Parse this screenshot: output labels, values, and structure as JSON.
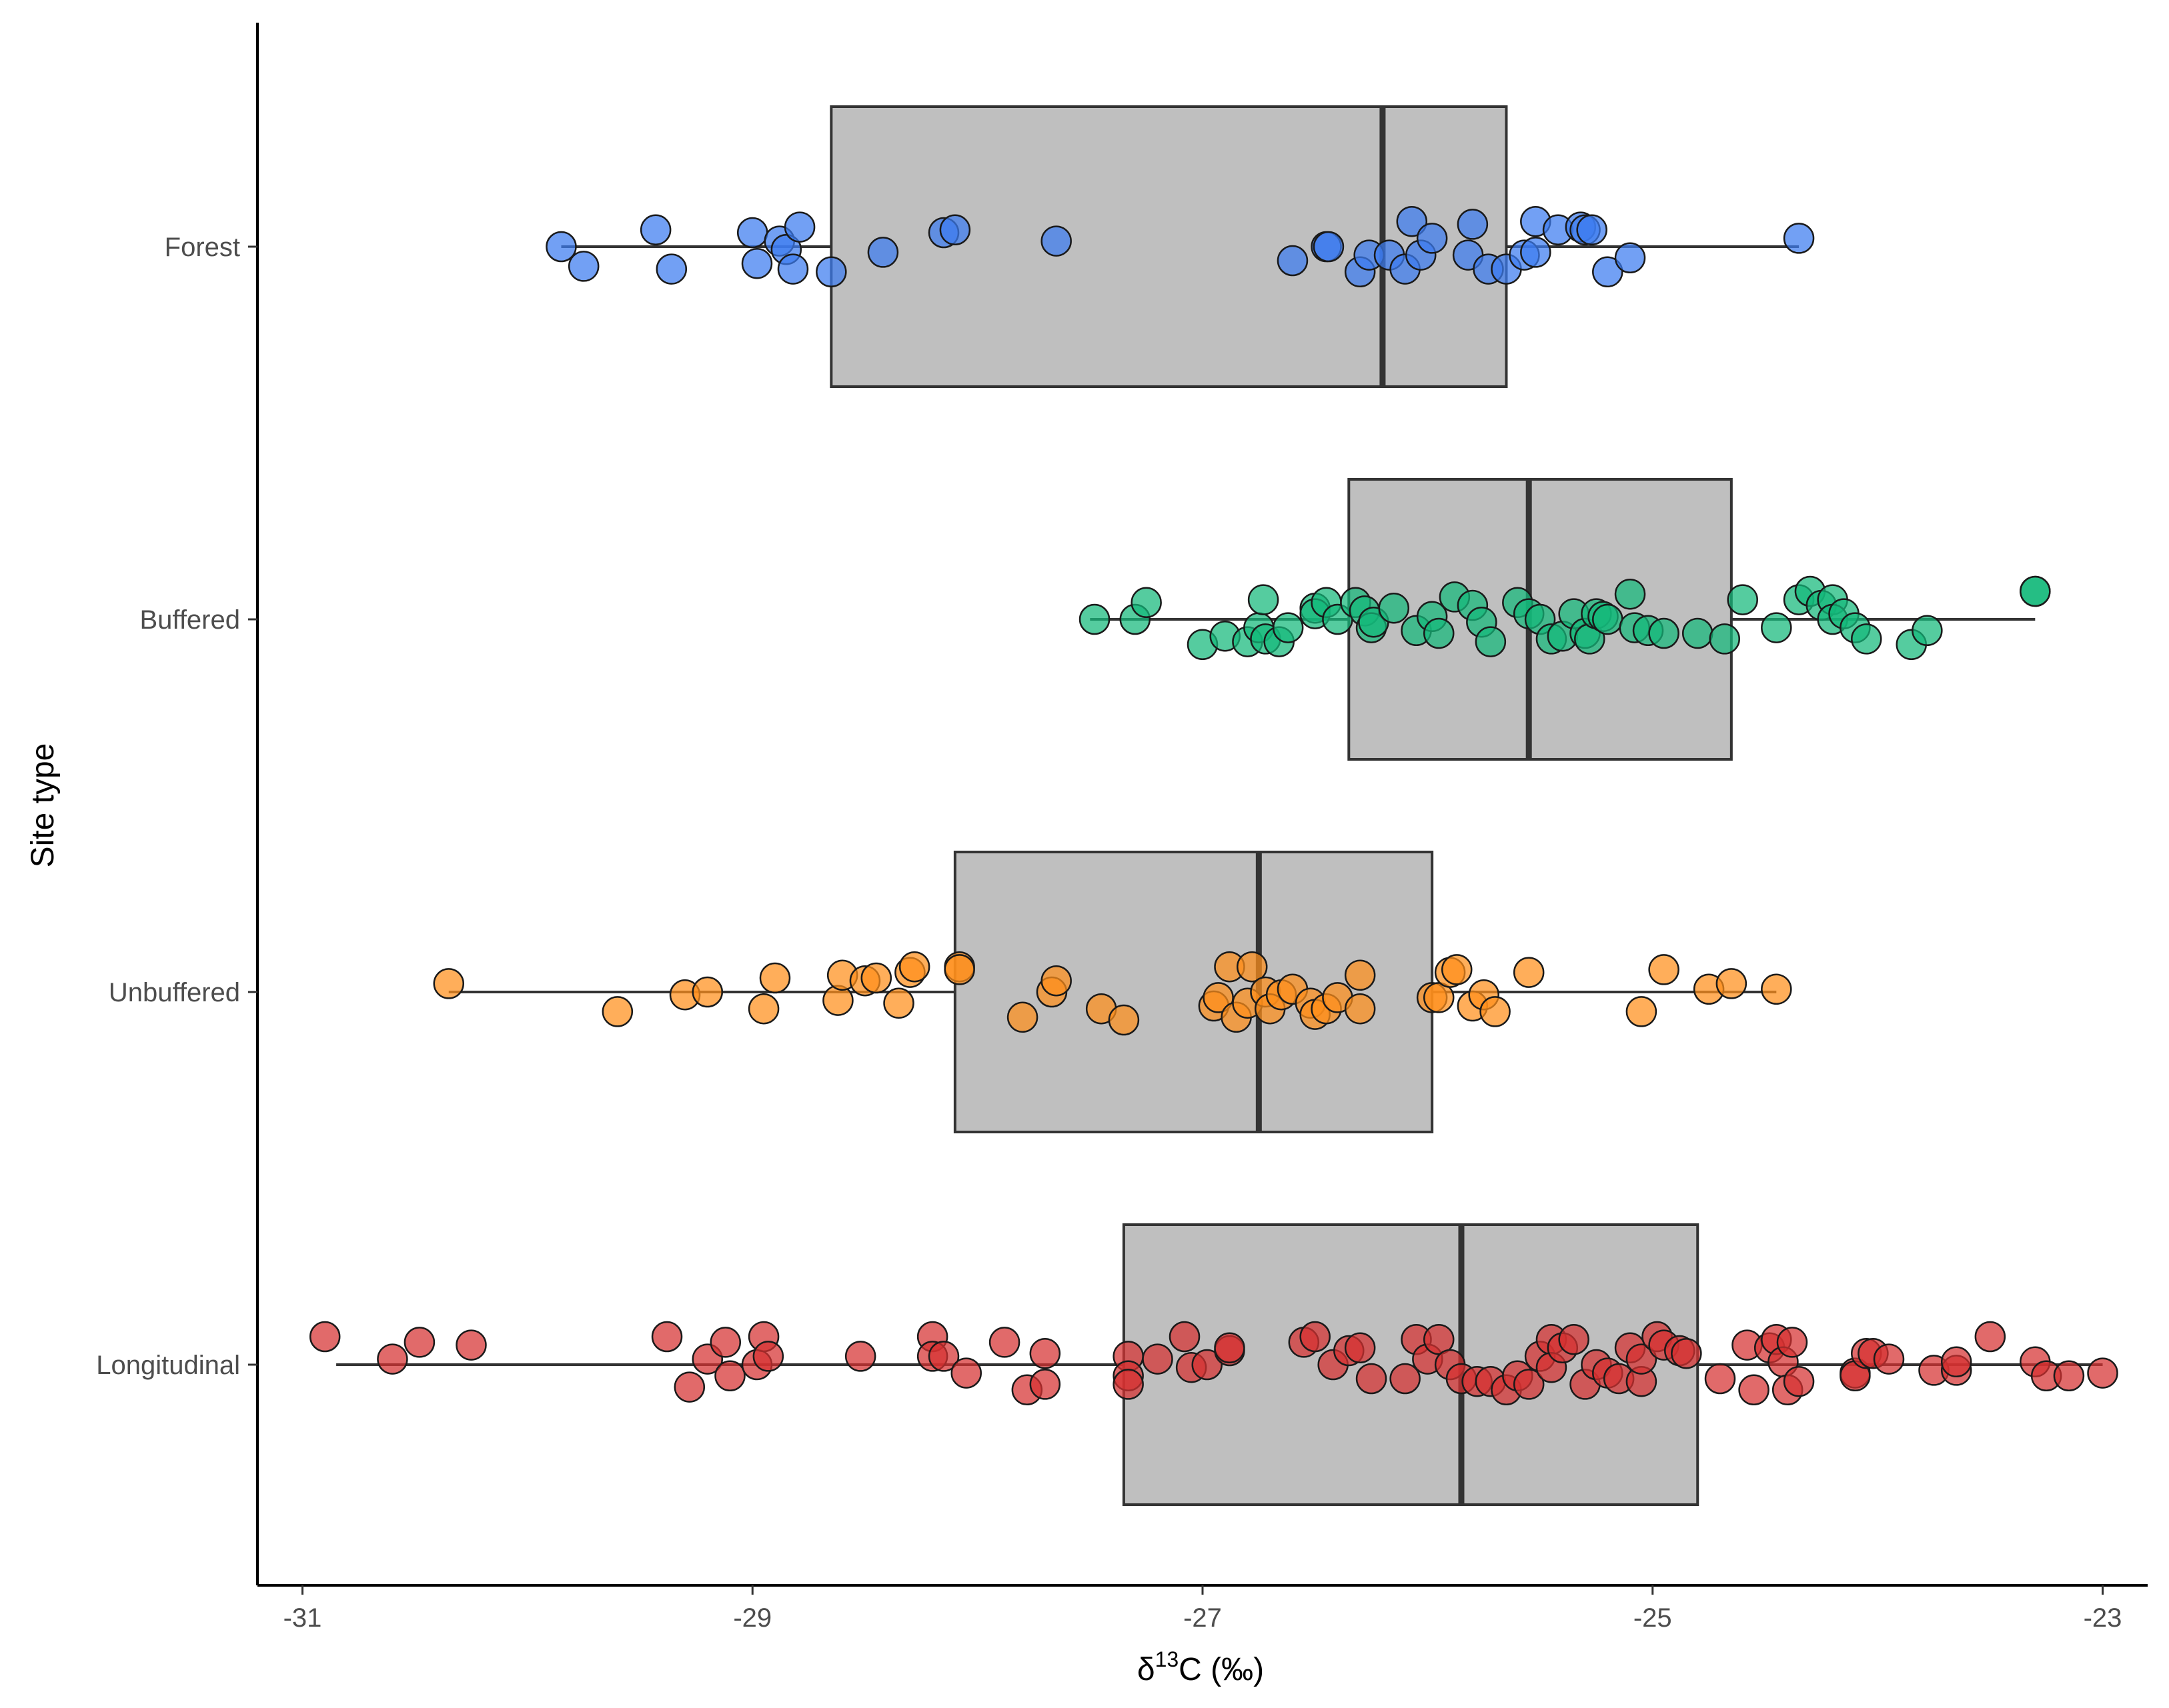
{
  "chart_data": {
    "type": "boxplot",
    "orientation": "horizontal",
    "title": "",
    "xlabel_prefix": "δ",
    "xlabel_superscript": "13",
    "xlabel_suffix": "C (‰)",
    "ylabel": "Site type",
    "xlim": [
      -31.2,
      -22.8
    ],
    "x_ticks": [
      -31,
      -29,
      -27,
      -25,
      -23
    ],
    "x_tick_labels": [
      "-31",
      "-29",
      "-27",
      "-25",
      "-23"
    ],
    "categories": [
      "Forest",
      "Buffered",
      "Unbuffered",
      "Longitudinal"
    ],
    "series": [
      {
        "name": "Forest",
        "color": "#3b7bf0",
        "box": {
          "min": -29.85,
          "q1": -28.65,
          "median": -26.2,
          "q3": -25.65,
          "max": -24.35
        },
        "points": [
          {
            "x": -29.85,
            "j": 0.0
          },
          {
            "x": -29.75,
            "j": -0.07
          },
          {
            "x": -29.43,
            "j": 0.06
          },
          {
            "x": -29.36,
            "j": -0.08
          },
          {
            "x": -29.0,
            "j": 0.05
          },
          {
            "x": -28.98,
            "j": -0.06
          },
          {
            "x": -28.88,
            "j": 0.02
          },
          {
            "x": -28.85,
            "j": -0.01
          },
          {
            "x": -28.82,
            "j": -0.08
          },
          {
            "x": -28.79,
            "j": 0.07
          },
          {
            "x": -28.65,
            "j": -0.09
          },
          {
            "x": -28.42,
            "j": -0.02
          },
          {
            "x": -28.15,
            "j": 0.05
          },
          {
            "x": -28.1,
            "j": 0.06
          },
          {
            "x": -27.65,
            "j": 0.02
          },
          {
            "x": -26.6,
            "j": -0.05
          },
          {
            "x": -26.45,
            "j": 0.0
          },
          {
            "x": -26.44,
            "j": 0.0
          },
          {
            "x": -26.3,
            "j": -0.09
          },
          {
            "x": -26.26,
            "j": -0.03
          },
          {
            "x": -26.17,
            "j": -0.03
          },
          {
            "x": -26.1,
            "j": -0.08
          },
          {
            "x": -26.07,
            "j": 0.09
          },
          {
            "x": -26.03,
            "j": -0.03
          },
          {
            "x": -25.98,
            "j": 0.03
          },
          {
            "x": -25.82,
            "j": -0.03
          },
          {
            "x": -25.8,
            "j": 0.08
          },
          {
            "x": -25.73,
            "j": -0.08
          },
          {
            "x": -25.65,
            "j": -0.08
          },
          {
            "x": -25.57,
            "j": -0.03
          },
          {
            "x": -25.52,
            "j": -0.02
          },
          {
            "x": -25.52,
            "j": 0.09
          },
          {
            "x": -25.42,
            "j": 0.06
          },
          {
            "x": -25.32,
            "j": 0.07
          },
          {
            "x": -25.3,
            "j": 0.06
          },
          {
            "x": -25.27,
            "j": 0.06
          },
          {
            "x": -25.2,
            "j": -0.09
          },
          {
            "x": -25.1,
            "j": -0.04
          },
          {
            "x": -24.35,
            "j": 0.03
          }
        ]
      },
      {
        "name": "Buffered",
        "color": "#14b87a",
        "box": {
          "min": -27.5,
          "q1": -26.35,
          "median": -25.55,
          "q3": -24.65,
          "max": -23.3
        },
        "points": [
          {
            "x": -27.48,
            "j": 0.0
          },
          {
            "x": -27.3,
            "j": 0.0
          },
          {
            "x": -27.25,
            "j": 0.06
          },
          {
            "x": -27.0,
            "j": -0.09
          },
          {
            "x": -26.9,
            "j": -0.06
          },
          {
            "x": -26.8,
            "j": -0.08
          },
          {
            "x": -26.75,
            "j": -0.03
          },
          {
            "x": -26.73,
            "j": 0.07
          },
          {
            "x": -26.72,
            "j": -0.07
          },
          {
            "x": -26.66,
            "j": -0.08
          },
          {
            "x": -26.62,
            "j": -0.03
          },
          {
            "x": -26.5,
            "j": 0.04
          },
          {
            "x": -26.5,
            "j": 0.02
          },
          {
            "x": -26.45,
            "j": 0.06
          },
          {
            "x": -26.4,
            "j": 0.0
          },
          {
            "x": -26.32,
            "j": 0.06
          },
          {
            "x": -26.28,
            "j": 0.03
          },
          {
            "x": -26.25,
            "j": -0.03
          },
          {
            "x": -26.24,
            "j": -0.01
          },
          {
            "x": -26.15,
            "j": 0.04
          },
          {
            "x": -26.05,
            "j": -0.04
          },
          {
            "x": -25.98,
            "j": 0.01
          },
          {
            "x": -25.95,
            "j": -0.05
          },
          {
            "x": -25.88,
            "j": 0.08
          },
          {
            "x": -25.8,
            "j": 0.05
          },
          {
            "x": -25.76,
            "j": -0.01
          },
          {
            "x": -25.72,
            "j": -0.08
          },
          {
            "x": -25.6,
            "j": 0.06
          },
          {
            "x": -25.55,
            "j": 0.02
          },
          {
            "x": -25.5,
            "j": 0.0
          },
          {
            "x": -25.45,
            "j": -0.07
          },
          {
            "x": -25.4,
            "j": -0.06
          },
          {
            "x": -25.35,
            "j": 0.02
          },
          {
            "x": -25.3,
            "j": -0.05
          },
          {
            "x": -25.28,
            "j": -0.07
          },
          {
            "x": -25.25,
            "j": 0.02
          },
          {
            "x": -25.22,
            "j": 0.01
          },
          {
            "x": -25.2,
            "j": 0.0
          },
          {
            "x": -25.1,
            "j": 0.09
          },
          {
            "x": -25.08,
            "j": -0.03
          },
          {
            "x": -25.02,
            "j": -0.04
          },
          {
            "x": -24.95,
            "j": -0.05
          },
          {
            "x": -24.8,
            "j": -0.05
          },
          {
            "x": -24.68,
            "j": -0.07
          },
          {
            "x": -24.6,
            "j": 0.07
          },
          {
            "x": -24.45,
            "j": -0.03
          },
          {
            "x": -24.35,
            "j": 0.07
          },
          {
            "x": -24.3,
            "j": 0.1
          },
          {
            "x": -24.25,
            "j": 0.05
          },
          {
            "x": -24.2,
            "j": 0.07
          },
          {
            "x": -24.2,
            "j": 0.0
          },
          {
            "x": -24.15,
            "j": 0.02
          },
          {
            "x": -24.1,
            "j": -0.03
          },
          {
            "x": -24.05,
            "j": -0.07
          },
          {
            "x": -23.85,
            "j": -0.09
          },
          {
            "x": -23.78,
            "j": -0.04
          },
          {
            "x": -23.3,
            "j": 0.1
          },
          {
            "x": -23.3,
            "j": 0.1
          }
        ]
      },
      {
        "name": "Unbuffered",
        "color": "#ff8f1a",
        "box": {
          "min": -30.35,
          "q1": -28.1,
          "median": -26.75,
          "q3": -25.98,
          "max": -24.45
        },
        "points": [
          {
            "x": -30.35,
            "j": 0.03
          },
          {
            "x": -29.6,
            "j": -0.07
          },
          {
            "x": -29.3,
            "j": -0.01
          },
          {
            "x": -29.2,
            "j": 0.0
          },
          {
            "x": -28.95,
            "j": -0.06
          },
          {
            "x": -28.9,
            "j": 0.05
          },
          {
            "x": -28.62,
            "j": -0.03
          },
          {
            "x": -28.6,
            "j": 0.06
          },
          {
            "x": -28.5,
            "j": 0.04
          },
          {
            "x": -28.45,
            "j": 0.05
          },
          {
            "x": -28.35,
            "j": -0.04
          },
          {
            "x": -28.3,
            "j": 0.07
          },
          {
            "x": -28.28,
            "j": 0.09
          },
          {
            "x": -28.08,
            "j": 0.09
          },
          {
            "x": -28.08,
            "j": 0.08
          },
          {
            "x": -27.8,
            "j": -0.09
          },
          {
            "x": -27.67,
            "j": 0.0
          },
          {
            "x": -27.65,
            "j": 0.04
          },
          {
            "x": -27.45,
            "j": -0.06
          },
          {
            "x": -27.35,
            "j": -0.1
          },
          {
            "x": -26.95,
            "j": -0.05
          },
          {
            "x": -26.93,
            "j": -0.02
          },
          {
            "x": -26.88,
            "j": 0.09
          },
          {
            "x": -26.85,
            "j": -0.09
          },
          {
            "x": -26.8,
            "j": -0.04
          },
          {
            "x": -26.78,
            "j": 0.09
          },
          {
            "x": -26.72,
            "j": 0.0
          },
          {
            "x": -26.7,
            "j": -0.06
          },
          {
            "x": -26.65,
            "j": -0.01
          },
          {
            "x": -26.6,
            "j": 0.01
          },
          {
            "x": -26.52,
            "j": -0.04
          },
          {
            "x": -26.5,
            "j": -0.08
          },
          {
            "x": -26.45,
            "j": -0.06
          },
          {
            "x": -26.4,
            "j": -0.02
          },
          {
            "x": -26.3,
            "j": 0.06
          },
          {
            "x": -26.3,
            "j": -0.06
          },
          {
            "x": -25.98,
            "j": -0.02
          },
          {
            "x": -25.95,
            "j": -0.02
          },
          {
            "x": -25.9,
            "j": 0.07
          },
          {
            "x": -25.87,
            "j": 0.08
          },
          {
            "x": -25.8,
            "j": -0.05
          },
          {
            "x": -25.75,
            "j": -0.01
          },
          {
            "x": -25.7,
            "j": -0.07
          },
          {
            "x": -25.55,
            "j": 0.07
          },
          {
            "x": -25.05,
            "j": -0.07
          },
          {
            "x": -24.95,
            "j": 0.08
          },
          {
            "x": -24.75,
            "j": 0.01
          },
          {
            "x": -24.65,
            "j": 0.03
          },
          {
            "x": -24.45,
            "j": 0.01
          }
        ]
      },
      {
        "name": "Longitudinal",
        "color": "#d63030",
        "box": {
          "min": -30.85,
          "q1": -27.35,
          "median": -25.85,
          "q3": -24.8,
          "max": -23.0
        },
        "points": [
          {
            "x": -30.9,
            "j": 0.1
          },
          {
            "x": -30.6,
            "j": 0.02
          },
          {
            "x": -30.48,
            "j": 0.08
          },
          {
            "x": -30.25,
            "j": 0.07
          },
          {
            "x": -29.38,
            "j": 0.1
          },
          {
            "x": -29.28,
            "j": -0.08
          },
          {
            "x": -29.2,
            "j": 0.02
          },
          {
            "x": -29.12,
            "j": 0.08
          },
          {
            "x": -29.1,
            "j": -0.04
          },
          {
            "x": -28.98,
            "j": 0.0
          },
          {
            "x": -28.95,
            "j": 0.1
          },
          {
            "x": -28.93,
            "j": 0.03
          },
          {
            "x": -28.52,
            "j": 0.03
          },
          {
            "x": -28.2,
            "j": 0.1
          },
          {
            "x": -28.2,
            "j": 0.03
          },
          {
            "x": -28.15,
            "j": 0.03
          },
          {
            "x": -28.05,
            "j": -0.03
          },
          {
            "x": -27.88,
            "j": 0.08
          },
          {
            "x": -27.78,
            "j": -0.09
          },
          {
            "x": -27.7,
            "j": 0.04
          },
          {
            "x": -27.7,
            "j": -0.07
          },
          {
            "x": -27.33,
            "j": 0.03
          },
          {
            "x": -27.33,
            "j": -0.04
          },
          {
            "x": -27.33,
            "j": -0.07
          },
          {
            "x": -27.2,
            "j": 0.02
          },
          {
            "x": -27.08,
            "j": 0.1
          },
          {
            "x": -27.05,
            "j": -0.01
          },
          {
            "x": -26.98,
            "j": 0.0
          },
          {
            "x": -26.88,
            "j": 0.05
          },
          {
            "x": -26.88,
            "j": 0.06
          },
          {
            "x": -26.55,
            "j": 0.08
          },
          {
            "x": -26.5,
            "j": 0.1
          },
          {
            "x": -26.42,
            "j": 0.0
          },
          {
            "x": -26.35,
            "j": 0.05
          },
          {
            "x": -26.3,
            "j": 0.06
          },
          {
            "x": -26.25,
            "j": -0.05
          },
          {
            "x": -26.1,
            "j": -0.05
          },
          {
            "x": -26.05,
            "j": 0.09
          },
          {
            "x": -26.0,
            "j": 0.02
          },
          {
            "x": -25.95,
            "j": 0.09
          },
          {
            "x": -25.9,
            "j": 0.0
          },
          {
            "x": -25.85,
            "j": -0.05
          },
          {
            "x": -25.78,
            "j": -0.06
          },
          {
            "x": -25.72,
            "j": -0.06
          },
          {
            "x": -25.65,
            "j": -0.09
          },
          {
            "x": -25.6,
            "j": -0.04
          },
          {
            "x": -25.55,
            "j": -0.07
          },
          {
            "x": -25.5,
            "j": 0.03
          },
          {
            "x": -25.45,
            "j": 0.09
          },
          {
            "x": -25.45,
            "j": -0.01
          },
          {
            "x": -25.4,
            "j": 0.06
          },
          {
            "x": -25.35,
            "j": 0.09
          },
          {
            "x": -25.3,
            "j": -0.07
          },
          {
            "x": -25.25,
            "j": 0.0
          },
          {
            "x": -25.2,
            "j": -0.03
          },
          {
            "x": -25.15,
            "j": -0.05
          },
          {
            "x": -25.1,
            "j": 0.06
          },
          {
            "x": -25.05,
            "j": -0.06
          },
          {
            "x": -25.05,
            "j": 0.02
          },
          {
            "x": -24.98,
            "j": 0.1
          },
          {
            "x": -24.95,
            "j": 0.07
          },
          {
            "x": -24.88,
            "j": 0.05
          },
          {
            "x": -24.85,
            "j": 0.04
          },
          {
            "x": -24.7,
            "j": -0.05
          },
          {
            "x": -24.58,
            "j": 0.07
          },
          {
            "x": -24.55,
            "j": -0.09
          },
          {
            "x": -24.48,
            "j": 0.06
          },
          {
            "x": -24.45,
            "j": 0.09
          },
          {
            "x": -24.42,
            "j": 0.01
          },
          {
            "x": -24.4,
            "j": -0.09
          },
          {
            "x": -24.38,
            "j": 0.08
          },
          {
            "x": -24.35,
            "j": -0.06
          },
          {
            "x": -24.1,
            "j": -0.03
          },
          {
            "x": -24.1,
            "j": -0.04
          },
          {
            "x": -24.05,
            "j": 0.04
          },
          {
            "x": -24.02,
            "j": 0.04
          },
          {
            "x": -23.95,
            "j": 0.02
          },
          {
            "x": -23.75,
            "j": -0.02
          },
          {
            "x": -23.65,
            "j": -0.02
          },
          {
            "x": -23.65,
            "j": 0.01
          },
          {
            "x": -23.5,
            "j": 0.1
          },
          {
            "x": -23.3,
            "j": 0.01
          },
          {
            "x": -23.25,
            "j": -0.04
          },
          {
            "x": -23.15,
            "j": -0.04
          },
          {
            "x": -23.0,
            "j": -0.03
          }
        ]
      }
    ]
  }
}
